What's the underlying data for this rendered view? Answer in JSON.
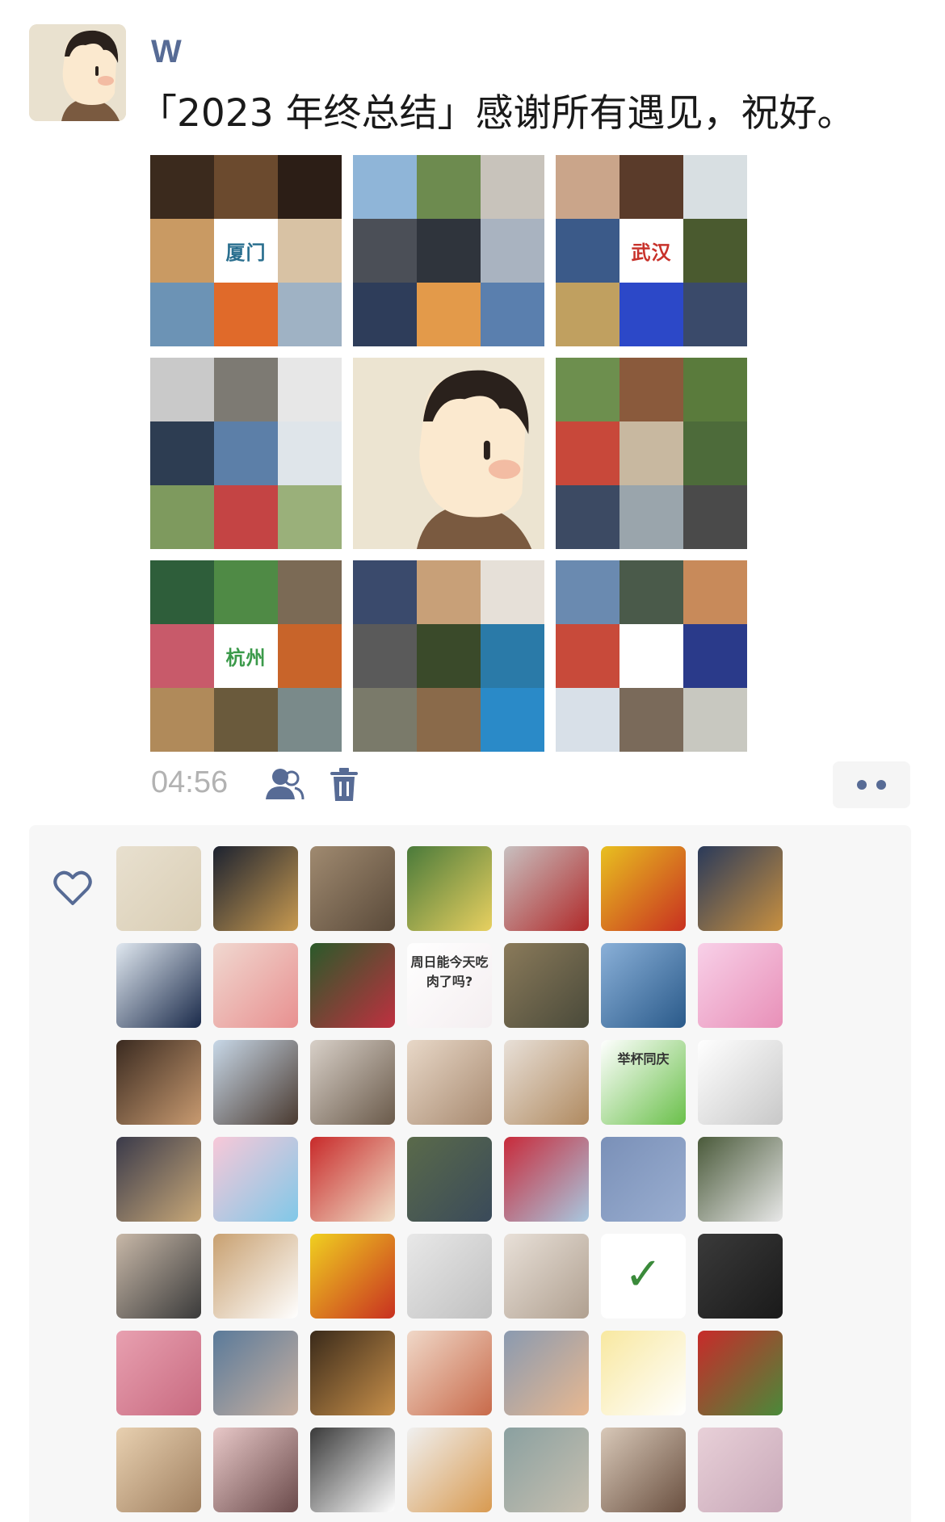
{
  "post": {
    "username": "W",
    "text": "「2023 年终总结」感谢所有遇见，祝好。",
    "time": "04:56"
  },
  "photos": [
    {
      "city": "厦门",
      "city_color": "#2a6f8f",
      "tiles": [
        "#3b2a1d",
        "#6b4a2e",
        "#2c1e16",
        "#c99a63",
        "#ffffff",
        "#d8c2a4",
        "#6c93b5",
        "#e06a2a",
        "#9fb2c4"
      ]
    },
    {
      "city": "",
      "city_color": "",
      "tiles": [
        "#8fb5d8",
        "#6d8b4f",
        "#c8c3bb",
        "#4b4f57",
        "#2f343c",
        "#a9b3c0",
        "#2e3d5a",
        "#e39a4a",
        "#5a7fae"
      ]
    },
    {
      "city": "武汉",
      "city_color": "#c8322b",
      "tiles": [
        "#caa58a",
        "#5a3b2a",
        "#d8dfe2",
        "#3b5a89",
        "#ffffff",
        "#4a5a2f",
        "#c0a060",
        "#2c48c8",
        "#3a4a6a"
      ]
    },
    {
      "city": "",
      "city_color": "",
      "tiles": [
        "#c9c9c9",
        "#7d7a73",
        "#e7e7e7",
        "#2d3d52",
        "#5c7fa8",
        "#dfe5ea",
        "#7e9a5e",
        "#c44444",
        "#9ab07a"
      ]
    },
    {
      "city": "",
      "city_color": "",
      "tiles": []
    },
    {
      "city": "",
      "city_color": "",
      "tiles": [
        "#6d8f4e",
        "#8a5a3c",
        "#5a7b3c",
        "#c8483a",
        "#c8b8a0",
        "#4d6b3a",
        "#3c4a63",
        "#9aa5ac",
        "#4a4a4a"
      ]
    },
    {
      "city": "杭州",
      "city_color": "#3b9a4a",
      "tiles": [
        "#2e5e3a",
        "#4f8a45",
        "#7b6a55",
        "#c85a6a",
        "#ffffff",
        "#c8642a",
        "#b08a5a",
        "#6a5a3c",
        "#7a8a8a"
      ]
    },
    {
      "city": "",
      "city_color": "",
      "tiles": [
        "#3a4a6c",
        "#c8a078",
        "#e6e0d8",
        "#5a5a5a",
        "#3a4a2a",
        "#2a7aa8",
        "#7a7a6a",
        "#8a6a4a",
        "#2a8ac8"
      ]
    },
    {
      "city": "",
      "city_color": "",
      "tiles": [
        "#6a8ab0",
        "#4a5a4a",
        "#c88a5a",
        "#c84a3a",
        "#ffffff",
        "#2a3a8a",
        "#d8e0e8",
        "#7a6a5a",
        "#c8c8c0"
      ]
    }
  ],
  "likers": [
    {
      "colors": [
        "#e8e0cf",
        "#d9cdb4"
      ],
      "label": ""
    },
    {
      "colors": [
        "#1c2230",
        "#c89a50"
      ],
      "label": ""
    },
    {
      "colors": [
        "#a08a70",
        "#5a4a3a"
      ],
      "label": ""
    },
    {
      "colors": [
        "#4a7a3a",
        "#e8d060"
      ],
      "label": ""
    },
    {
      "colors": [
        "#c8c0c0",
        "#b02a2a"
      ],
      "label": ""
    },
    {
      "colors": [
        "#e8c020",
        "#c83020"
      ],
      "label": ""
    },
    {
      "colors": [
        "#2a3a5a",
        "#c89040"
      ],
      "label": ""
    },
    {
      "colors": [
        "#e0e8f0",
        "#1a2a4a"
      ],
      "label": ""
    },
    {
      "colors": [
        "#f0d8d0",
        "#e89090"
      ],
      "label": ""
    },
    {
      "colors": [
        "#2a5a2a",
        "#c03040"
      ],
      "label": ""
    },
    {
      "colors": [
        "#ffffff",
        "#f4eef0"
      ],
      "label": "周日能今天吃肉了吗?"
    },
    {
      "colors": [
        "#8a7a5a",
        "#4a4a3a"
      ],
      "label": ""
    },
    {
      "colors": [
        "#8ab0d8",
        "#2a5a8a"
      ],
      "label": ""
    },
    {
      "colors": [
        "#f8d0e8",
        "#e890b8"
      ],
      "label": ""
    },
    {
      "colors": [
        "#3a2a20",
        "#c89a70"
      ],
      "label": ""
    },
    {
      "colors": [
        "#c8d8e8",
        "#4a3a30"
      ],
      "label": ""
    },
    {
      "colors": [
        "#d8d0c8",
        "#6a5a4a"
      ],
      "label": ""
    },
    {
      "colors": [
        "#e8d8c8",
        "#a88a70"
      ],
      "label": ""
    },
    {
      "colors": [
        "#e8e0d8",
        "#b08a60"
      ],
      "label": ""
    },
    {
      "colors": [
        "#ffffff",
        "#6ac04a"
      ],
      "label": "举杯同庆"
    },
    {
      "colors": [
        "#ffffff",
        "#c8c8c8"
      ],
      "label": ""
    },
    {
      "colors": [
        "#3a3a4a",
        "#c8a878"
      ],
      "label": ""
    },
    {
      "colors": [
        "#f8c8d8",
        "#80c8e8"
      ],
      "label": ""
    },
    {
      "colors": [
        "#c82a2a",
        "#f0e0c8"
      ],
      "label": ""
    },
    {
      "colors": [
        "#5a6a4a",
        "#3a4a5a"
      ],
      "label": ""
    },
    {
      "colors": [
        "#c82a3a",
        "#a8c8e0"
      ],
      "label": ""
    },
    {
      "colors": [
        "#7a90b8",
        "#9aaed0"
      ],
      "label": ""
    },
    {
      "colors": [
        "#4a5a3a",
        "#e8e8e8"
      ],
      "label": ""
    },
    {
      "colors": [
        "#c8b8a8",
        "#3a3a3a"
      ],
      "label": ""
    },
    {
      "colors": [
        "#c8a070",
        "#ffffff"
      ],
      "label": ""
    },
    {
      "colors": [
        "#f0d020",
        "#c83020"
      ],
      "label": ""
    },
    {
      "colors": [
        "#e8e8e8",
        "#c0c0c0"
      ],
      "label": ""
    },
    {
      "colors": [
        "#e8e0d8",
        "#b0a090"
      ],
      "label": ""
    },
    {
      "colors": [
        "#ffffff",
        "#ffffff"
      ],
      "label": "✓"
    },
    {
      "colors": [
        "#3a3a3a",
        "#1a1a1a"
      ],
      "label": ""
    },
    {
      "colors": [
        "#e8a0b0",
        "#c86a80"
      ],
      "label": ""
    },
    {
      "colors": [
        "#5a7a9a",
        "#c8b0a0"
      ],
      "label": ""
    },
    {
      "colors": [
        "#3a2a1a",
        "#c8904a"
      ],
      "label": ""
    },
    {
      "colors": [
        "#f0d8c8",
        "#c86a4a"
      ],
      "label": ""
    },
    {
      "colors": [
        "#8a9ab0",
        "#e8b890"
      ],
      "label": ""
    },
    {
      "colors": [
        "#f8e8a0",
        "#ffffff"
      ],
      "label": ""
    },
    {
      "colors": [
        "#c82a2a",
        "#4a8a3a"
      ],
      "label": ""
    },
    {
      "colors": [
        "#e8d0b0",
        "#a08060"
      ],
      "label": ""
    },
    {
      "colors": [
        "#e8c8c8",
        "#6a4a4a"
      ],
      "label": ""
    },
    {
      "colors": [
        "#3a3a3a",
        "#ffffff"
      ],
      "label": ""
    },
    {
      "colors": [
        "#f0f0f0",
        "#d89a50"
      ],
      "label": ""
    },
    {
      "colors": [
        "#8aa0a0",
        "#c8c0b0"
      ],
      "label": ""
    },
    {
      "colors": [
        "#d8c8b8",
        "#6a5040"
      ],
      "label": ""
    },
    {
      "colors": [
        "#e8d0d8",
        "#c8a8b8"
      ],
      "label": ""
    }
  ]
}
